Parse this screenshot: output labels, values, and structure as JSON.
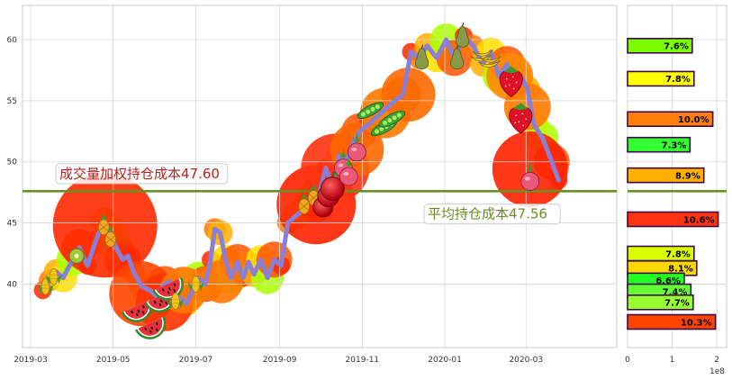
{
  "chart_data": [
    {
      "type": "line",
      "title": "",
      "xlabel": "",
      "ylabel": "",
      "x_ticks": [
        "2019-03",
        "2019-05",
        "2019-07",
        "2019-09",
        "2019-11",
        "2020-01",
        "2020-03"
      ],
      "y_ticks": [
        40,
        45,
        50,
        55,
        60
      ],
      "xlim": [
        "2019-02-23",
        "2020-05-07"
      ],
      "ylim": [
        34.8,
        62.8
      ],
      "grid": true,
      "series": [
        {
          "name": "",
          "color": "#8a7fd6",
          "x": [
            "2019-03-10",
            "2019-03-15",
            "2019-03-20",
            "2019-03-25",
            "2019-04-01",
            "2019-04-06",
            "2019-04-12",
            "2019-04-18",
            "2019-04-24",
            "2019-04-28",
            "2019-05-03",
            "2019-05-08",
            "2019-05-12",
            "2019-05-16",
            "2019-05-22",
            "2019-05-28",
            "2019-06-02",
            "2019-06-08",
            "2019-06-12",
            "2019-06-18",
            "2019-06-24",
            "2019-06-28",
            "2019-07-03",
            "2019-07-08",
            "2019-07-12",
            "2019-07-15",
            "2019-07-19",
            "2019-07-23",
            "2019-07-27",
            "2019-08-01",
            "2019-08-05",
            "2019-08-09",
            "2019-08-13",
            "2019-08-18",
            "2019-08-23",
            "2019-08-28",
            "2019-09-02",
            "2019-09-07",
            "2019-09-12",
            "2019-09-18",
            "2019-09-24",
            "2019-09-28",
            "2019-10-05",
            "2019-10-10",
            "2019-10-15",
            "2019-10-20",
            "2019-10-25",
            "2019-10-30",
            "2019-11-05",
            "2019-11-10",
            "2019-11-15",
            "2019-11-20",
            "2019-11-25",
            "2019-12-01",
            "2019-12-07",
            "2019-12-13",
            "2019-12-19",
            "2019-12-26",
            "2020-01-02",
            "2020-01-08",
            "2020-01-15",
            "2020-01-22",
            "2020-01-29",
            "2020-02-04",
            "2020-02-10",
            "2020-02-16",
            "2020-02-21",
            "2020-02-26",
            "2020-03-02",
            "2020-03-07",
            "2020-03-13",
            "2020-03-20",
            "2020-03-25"
          ],
          "values": [
            39.5,
            40.3,
            41.0,
            40.5,
            42.0,
            43.0,
            41.5,
            43.5,
            45.2,
            44.5,
            43.0,
            42.0,
            42.3,
            41.0,
            39.8,
            39.5,
            39.0,
            40.0,
            40.2,
            39.0,
            38.4,
            39.3,
            40.5,
            40.0,
            42.0,
            44.5,
            44.2,
            42.0,
            40.5,
            41.8,
            40.5,
            41.8,
            40.8,
            42.0,
            40.5,
            42.0,
            41.5,
            45.0,
            45.5,
            46.0,
            47.0,
            46.5,
            49.5,
            48.0,
            50.5,
            50.0,
            51.5,
            52.5,
            53.0,
            53.5,
            54.0,
            54.5,
            55.0,
            55.5,
            59.0,
            58.5,
            59.5,
            58.5,
            60.0,
            58.5,
            60.3,
            59.5,
            58.0,
            59.0,
            57.0,
            58.0,
            56.0,
            57.0,
            56.0,
            53.0,
            52.0,
            50.0,
            48.5
          ]
        }
      ],
      "reference_lines": [
        {
          "value": 47.6,
          "color": "#6b8e23",
          "label": "成交量加权持仓成本47.60",
          "label_color": "#b22222"
        },
        {
          "value": 47.56,
          "color": "#6b8e23",
          "label": "平均持仓成本47.56",
          "label_color": "#6b8e23"
        }
      ]
    },
    {
      "type": "bar",
      "orientation": "horizontal",
      "title": "",
      "xlabel": "",
      "ylabel": "",
      "x_ticks": [
        "0",
        "1",
        "2"
      ],
      "x_offset_text": "1e8",
      "xlim": [
        0,
        2.22
      ],
      "grid": true,
      "bars": [
        {
          "price": 59.5,
          "value": 1.45,
          "label": "7.6%",
          "color": "#7cfc00"
        },
        {
          "price": 56.8,
          "value": 1.49,
          "label": "7.8%",
          "color": "#ffff00"
        },
        {
          "price": 53.5,
          "value": 1.91,
          "label": "10.0%",
          "color": "#ff7f0e"
        },
        {
          "price": 51.4,
          "value": 1.4,
          "label": "7.3%",
          "color": "#33ff33"
        },
        {
          "price": 48.9,
          "value": 1.71,
          "label": "8.9%",
          "color": "#ffb000"
        },
        {
          "price": 45.3,
          "value": 2.03,
          "label": "10.6%",
          "color": "#ff3311"
        },
        {
          "price": 42.5,
          "value": 1.49,
          "label": "7.8%",
          "color": "#d8ff00"
        },
        {
          "price": 41.3,
          "value": 1.55,
          "label": "8.1%",
          "color": "#ffd700"
        },
        {
          "price": 40.3,
          "value": 1.27,
          "label": "6.6%",
          "color": "#22ff22"
        },
        {
          "price": 39.4,
          "value": 1.42,
          "label": "7.4%",
          "color": "#66ff33"
        },
        {
          "price": 38.5,
          "value": 1.47,
          "label": "7.7%",
          "color": "#99ff33"
        },
        {
          "price": 36.9,
          "value": 1.97,
          "label": "10.3%",
          "color": "#ff4400"
        }
      ]
    }
  ]
}
